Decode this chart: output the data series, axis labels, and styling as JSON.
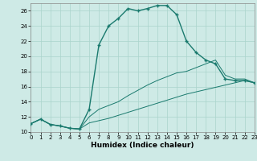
{
  "xlabel": "Humidex (Indice chaleur)",
  "background_color": "#ceeae6",
  "grid_color": "#aad4cc",
  "line_color": "#1a7a6e",
  "xlim": [
    0,
    23
  ],
  "ylim": [
    10,
    27
  ],
  "xticks": [
    0,
    1,
    2,
    3,
    4,
    5,
    6,
    7,
    8,
    9,
    10,
    11,
    12,
    13,
    14,
    15,
    16,
    17,
    18,
    19,
    20,
    21,
    22,
    23
  ],
  "yticks": [
    10,
    12,
    14,
    16,
    18,
    20,
    22,
    24,
    26
  ],
  "curve_main_x": [
    0,
    1,
    2,
    3,
    4,
    5,
    6,
    7,
    8,
    9,
    10,
    11,
    12,
    13,
    14,
    15,
    16,
    17,
    18,
    19,
    20,
    21,
    22,
    23
  ],
  "curve_main_y": [
    11.1,
    11.7,
    11.0,
    10.8,
    10.5,
    10.4,
    13.0,
    21.5,
    24.0,
    25.0,
    26.3,
    26.0,
    26.3,
    26.7,
    26.7,
    25.5,
    22.0,
    20.5,
    19.5,
    19.0,
    17.0,
    16.8,
    16.8,
    16.5
  ],
  "curve_low_x": [
    0,
    1,
    2,
    3,
    4,
    5,
    6,
    7,
    8,
    9,
    10,
    11,
    12,
    13,
    14,
    15,
    16,
    17,
    18,
    19,
    20,
    21,
    22,
    23
  ],
  "curve_low_y": [
    11.1,
    11.7,
    11.0,
    10.8,
    10.5,
    10.4,
    11.2,
    11.5,
    11.8,
    12.2,
    12.6,
    13.0,
    13.4,
    13.8,
    14.2,
    14.6,
    15.0,
    15.3,
    15.6,
    15.9,
    16.2,
    16.5,
    16.8,
    16.5
  ],
  "curve_mid_x": [
    0,
    1,
    2,
    3,
    4,
    5,
    6,
    7,
    8,
    9,
    10,
    11,
    12,
    13,
    14,
    15,
    16,
    17,
    18,
    19,
    20,
    21,
    22,
    23
  ],
  "curve_mid_y": [
    11.1,
    11.7,
    11.0,
    10.8,
    10.5,
    10.4,
    12.0,
    13.0,
    13.5,
    14.0,
    14.8,
    15.5,
    16.2,
    16.8,
    17.3,
    17.8,
    18.0,
    18.5,
    19.0,
    19.5,
    17.5,
    17.0,
    17.0,
    16.5
  ]
}
